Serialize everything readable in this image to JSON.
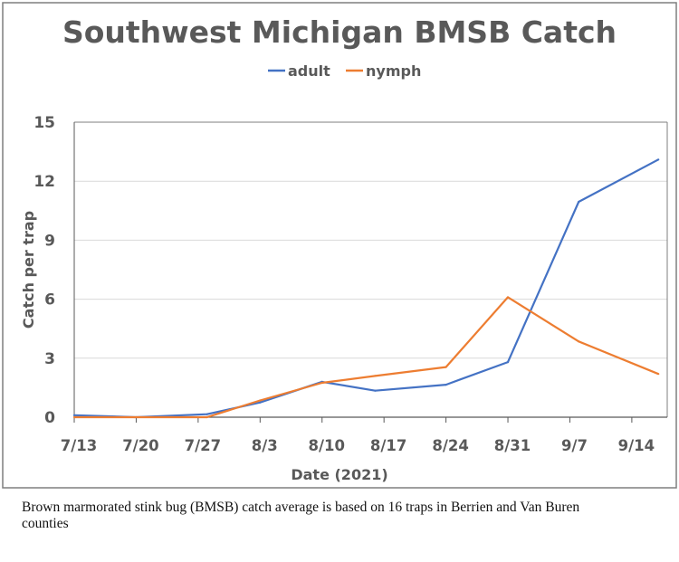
{
  "chart_data": {
    "type": "line",
    "title": "Southwest Michigan BMSB Catch",
    "xlabel": "Date (2021)",
    "ylabel": "Catch per trap",
    "x_tick_labels": [
      "7/13",
      "7/20",
      "7/27",
      "8/3",
      "8/10",
      "8/17",
      "8/24",
      "8/31",
      "9/7",
      "9/14"
    ],
    "y_tick_labels": [
      "0",
      "3",
      "6",
      "9",
      "12",
      "15"
    ],
    "ylim": [
      0,
      15
    ],
    "xlim": [
      "7/13",
      "9/18"
    ],
    "grid": "horizontal",
    "legend_position": "top",
    "x": [
      "7/13",
      "7/20",
      "7/28",
      "8/3",
      "8/10",
      "8/16",
      "8/24",
      "8/31",
      "9/8",
      "9/17"
    ],
    "series": [
      {
        "name": "adult",
        "color": "#4472C4",
        "values": [
          0.1,
          0,
          0.15,
          0.75,
          1.8,
          1.35,
          1.65,
          2.8,
          10.95,
          13.1
        ]
      },
      {
        "name": "nymph",
        "color": "#ED7D31",
        "values": [
          0,
          0,
          0,
          0.85,
          1.75,
          2.1,
          2.55,
          6.1,
          3.85,
          2.2
        ]
      }
    ]
  },
  "caption": "Brown marmorated stink bug (BMSB) catch average is based on 16 traps in Berrien and Van Buren counties"
}
